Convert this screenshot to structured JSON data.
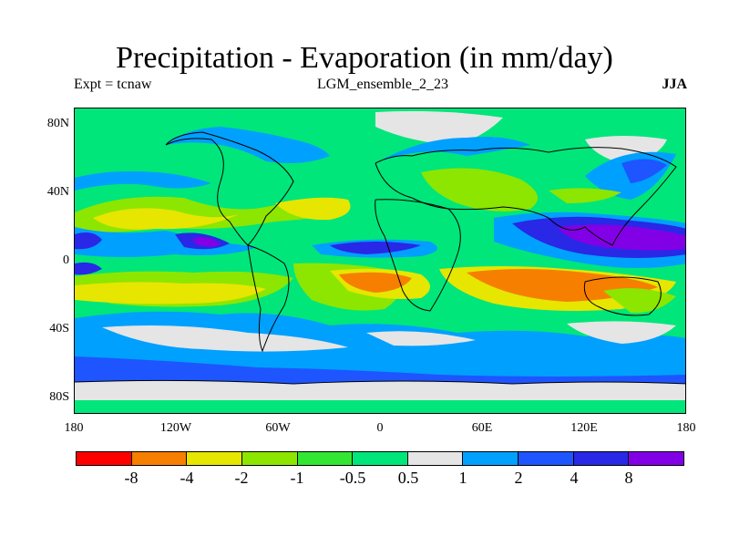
{
  "title": "Precipitation - Evaporation (in mm/day)",
  "experiment_label": "Expt = tcnaw",
  "run_name": "LGM_ensemble_2_23",
  "season": "JJA",
  "latitude_ticks": [
    "80N",
    "40N",
    "0",
    "40S",
    "80S"
  ],
  "longitude_ticks": [
    "180",
    "120W",
    "60W",
    "0",
    "60E",
    "120E",
    "180"
  ],
  "colorbar": {
    "colors": [
      "#ff0000",
      "#f77f00",
      "#e6e600",
      "#8ce600",
      "#33e633",
      "#00e67a",
      "#e5e5e5",
      "#00a0ff",
      "#1e55ff",
      "#2828e6",
      "#8200e6"
    ],
    "labels": [
      "-8",
      "-4",
      "-2",
      "-1",
      "-0.5",
      "0.5",
      "1",
      "2",
      "4",
      "8"
    ]
  }
}
